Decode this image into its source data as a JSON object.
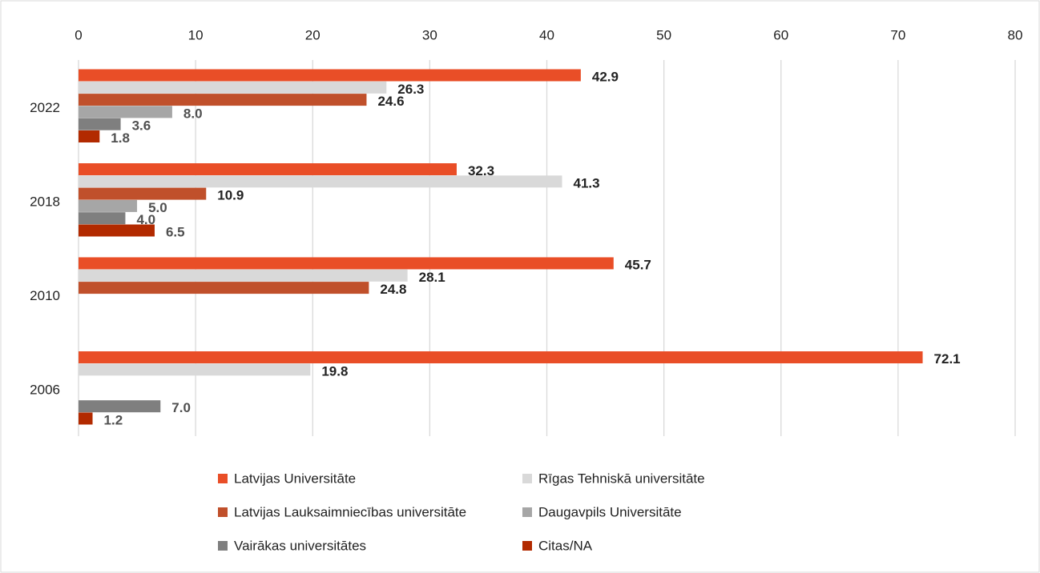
{
  "chart_data": {
    "type": "hbar",
    "categories": [
      "2022",
      "2018",
      "2010",
      "2006"
    ],
    "series": [
      {
        "name": "Latvijas Universitāte",
        "color": "#e94e27",
        "values": [
          42.9,
          32.3,
          45.7,
          72.1
        ],
        "value_labels": [
          "42.9",
          "32.3",
          "45.7",
          "72.1"
        ]
      },
      {
        "name": "Rīgas Tehniskā universitāte",
        "color": "#d9d9d9",
        "values": [
          26.3,
          41.3,
          28.1,
          19.8
        ],
        "value_labels": [
          "26.3",
          "41.3",
          "28.1",
          "19.8"
        ]
      },
      {
        "name": "Latvijas Lauksaimniecības universitāte",
        "color": "#c0502b",
        "values": [
          24.6,
          10.9,
          24.8,
          null
        ],
        "value_labels": [
          "24.6",
          "10.9",
          "24.8",
          null
        ]
      },
      {
        "name": "Daugavpils Universitāte",
        "color": "#a6a6a6",
        "values": [
          8.0,
          5.0,
          null,
          null
        ],
        "value_labels": [
          "8.0",
          "5.0",
          null,
          null
        ]
      },
      {
        "name": "Vairākas universitātes",
        "color": "#7f7f7f",
        "values": [
          3.6,
          4.0,
          null,
          7.0
        ],
        "value_labels": [
          "3.6",
          "4.0",
          null,
          "7.0"
        ]
      },
      {
        "name": "Citas/NA",
        "color": "#b22a00",
        "values": [
          1.8,
          6.5,
          null,
          1.2
        ],
        "value_labels": [
          "1.8",
          "6.5",
          null,
          "1.2"
        ]
      }
    ],
    "xlim": [
      0,
      80
    ],
    "xticks": [
      0,
      10,
      20,
      30,
      40,
      50,
      60,
      70,
      80
    ],
    "grid": true,
    "legend": "bottom"
  }
}
